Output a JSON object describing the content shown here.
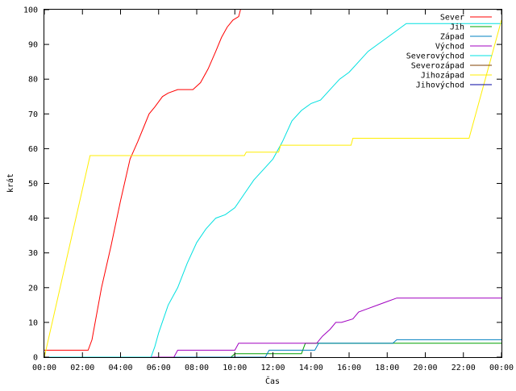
{
  "chart_data": {
    "type": "line",
    "title": "",
    "xlabel": "Čas",
    "ylabel": "krát",
    "xlim": [
      0,
      24
    ],
    "ylim": [
      0,
      100
    ],
    "x_ticks": [
      "00:00",
      "02:00",
      "04:00",
      "06:00",
      "08:00",
      "10:00",
      "12:00",
      "14:00",
      "16:00",
      "18:00",
      "20:00",
      "22:00",
      "00:00"
    ],
    "y_ticks": [
      "0",
      "10",
      "20",
      "30",
      "40",
      "50",
      "60",
      "70",
      "80",
      "90",
      "100"
    ],
    "legend_position": "top-right",
    "grid": false,
    "series": [
      {
        "name": "Sever",
        "color": "#ff0000",
        "x": [
          0,
          2.3,
          2.5,
          3.0,
          3.5,
          4.0,
          4.5,
          4.9,
          5.2,
          5.5,
          5.8,
          6.2,
          6.5,
          7.0,
          7.4,
          7.8,
          8.2,
          8.6,
          9.0,
          9.3,
          9.6,
          9.9,
          10.2,
          10.3
        ],
        "y": [
          2,
          2,
          5,
          20,
          32,
          45,
          57,
          62,
          66,
          70,
          72,
          75,
          76,
          77,
          77,
          77,
          79,
          83,
          88,
          92,
          95,
          97,
          98,
          100
        ]
      },
      {
        "name": "Jih",
        "color": "#00a000",
        "x": [
          0,
          9.8,
          10.0,
          13.5,
          13.7,
          24
        ],
        "y": [
          0,
          0,
          1,
          1,
          4,
          4
        ]
      },
      {
        "name": "Západ",
        "color": "#0080c0",
        "x": [
          0,
          11.6,
          11.8,
          14.2,
          14.4,
          18.3,
          18.5,
          24
        ],
        "y": [
          0,
          0,
          2,
          2,
          4,
          4,
          5,
          5
        ]
      },
      {
        "name": "Východ",
        "color": "#a000c0",
        "x": [
          0,
          6.8,
          7.0,
          10.0,
          10.2,
          14.3,
          14.6,
          15.0,
          15.3,
          15.6,
          16.2,
          16.5,
          17.0,
          17.5,
          18.0,
          18.5,
          24
        ],
        "y": [
          0,
          0,
          2,
          2,
          4,
          4,
          6,
          8,
          10,
          10,
          11,
          13,
          14,
          15,
          16,
          17,
          17
        ]
      },
      {
        "name": "Severovýchod",
        "color": "#00e0e0",
        "x": [
          0,
          5.6,
          5.8,
          6.0,
          6.5,
          7.0,
          7.5,
          8.0,
          8.5,
          9.0,
          9.5,
          10.0,
          10.5,
          11.0,
          11.5,
          12.0,
          12.5,
          13.0,
          13.5,
          14.0,
          14.5,
          15.0,
          15.5,
          16.0,
          16.5,
          17.0,
          17.5,
          18.0,
          18.5,
          19.0,
          24
        ],
        "y": [
          0,
          0,
          3,
          7,
          15,
          20,
          27,
          33,
          37,
          40,
          41,
          43,
          47,
          51,
          54,
          57,
          62,
          68,
          71,
          73,
          74,
          77,
          80,
          82,
          85,
          88,
          90,
          92,
          94,
          96,
          96
        ]
      },
      {
        "name": "Severozápad",
        "color": "#804000",
        "x": [],
        "y": []
      },
      {
        "name": "Jihozápad",
        "color": "#ffee00",
        "x": [
          0,
          2.4,
          10.5,
          10.6,
          12.3,
          12.4,
          16.1,
          16.2,
          22.3,
          24
        ],
        "y": [
          0,
          58,
          58,
          59,
          59,
          61,
          61,
          63,
          63,
          97
        ]
      },
      {
        "name": "Jihovýchod",
        "color": "#0000a0",
        "x": [],
        "y": []
      }
    ]
  }
}
